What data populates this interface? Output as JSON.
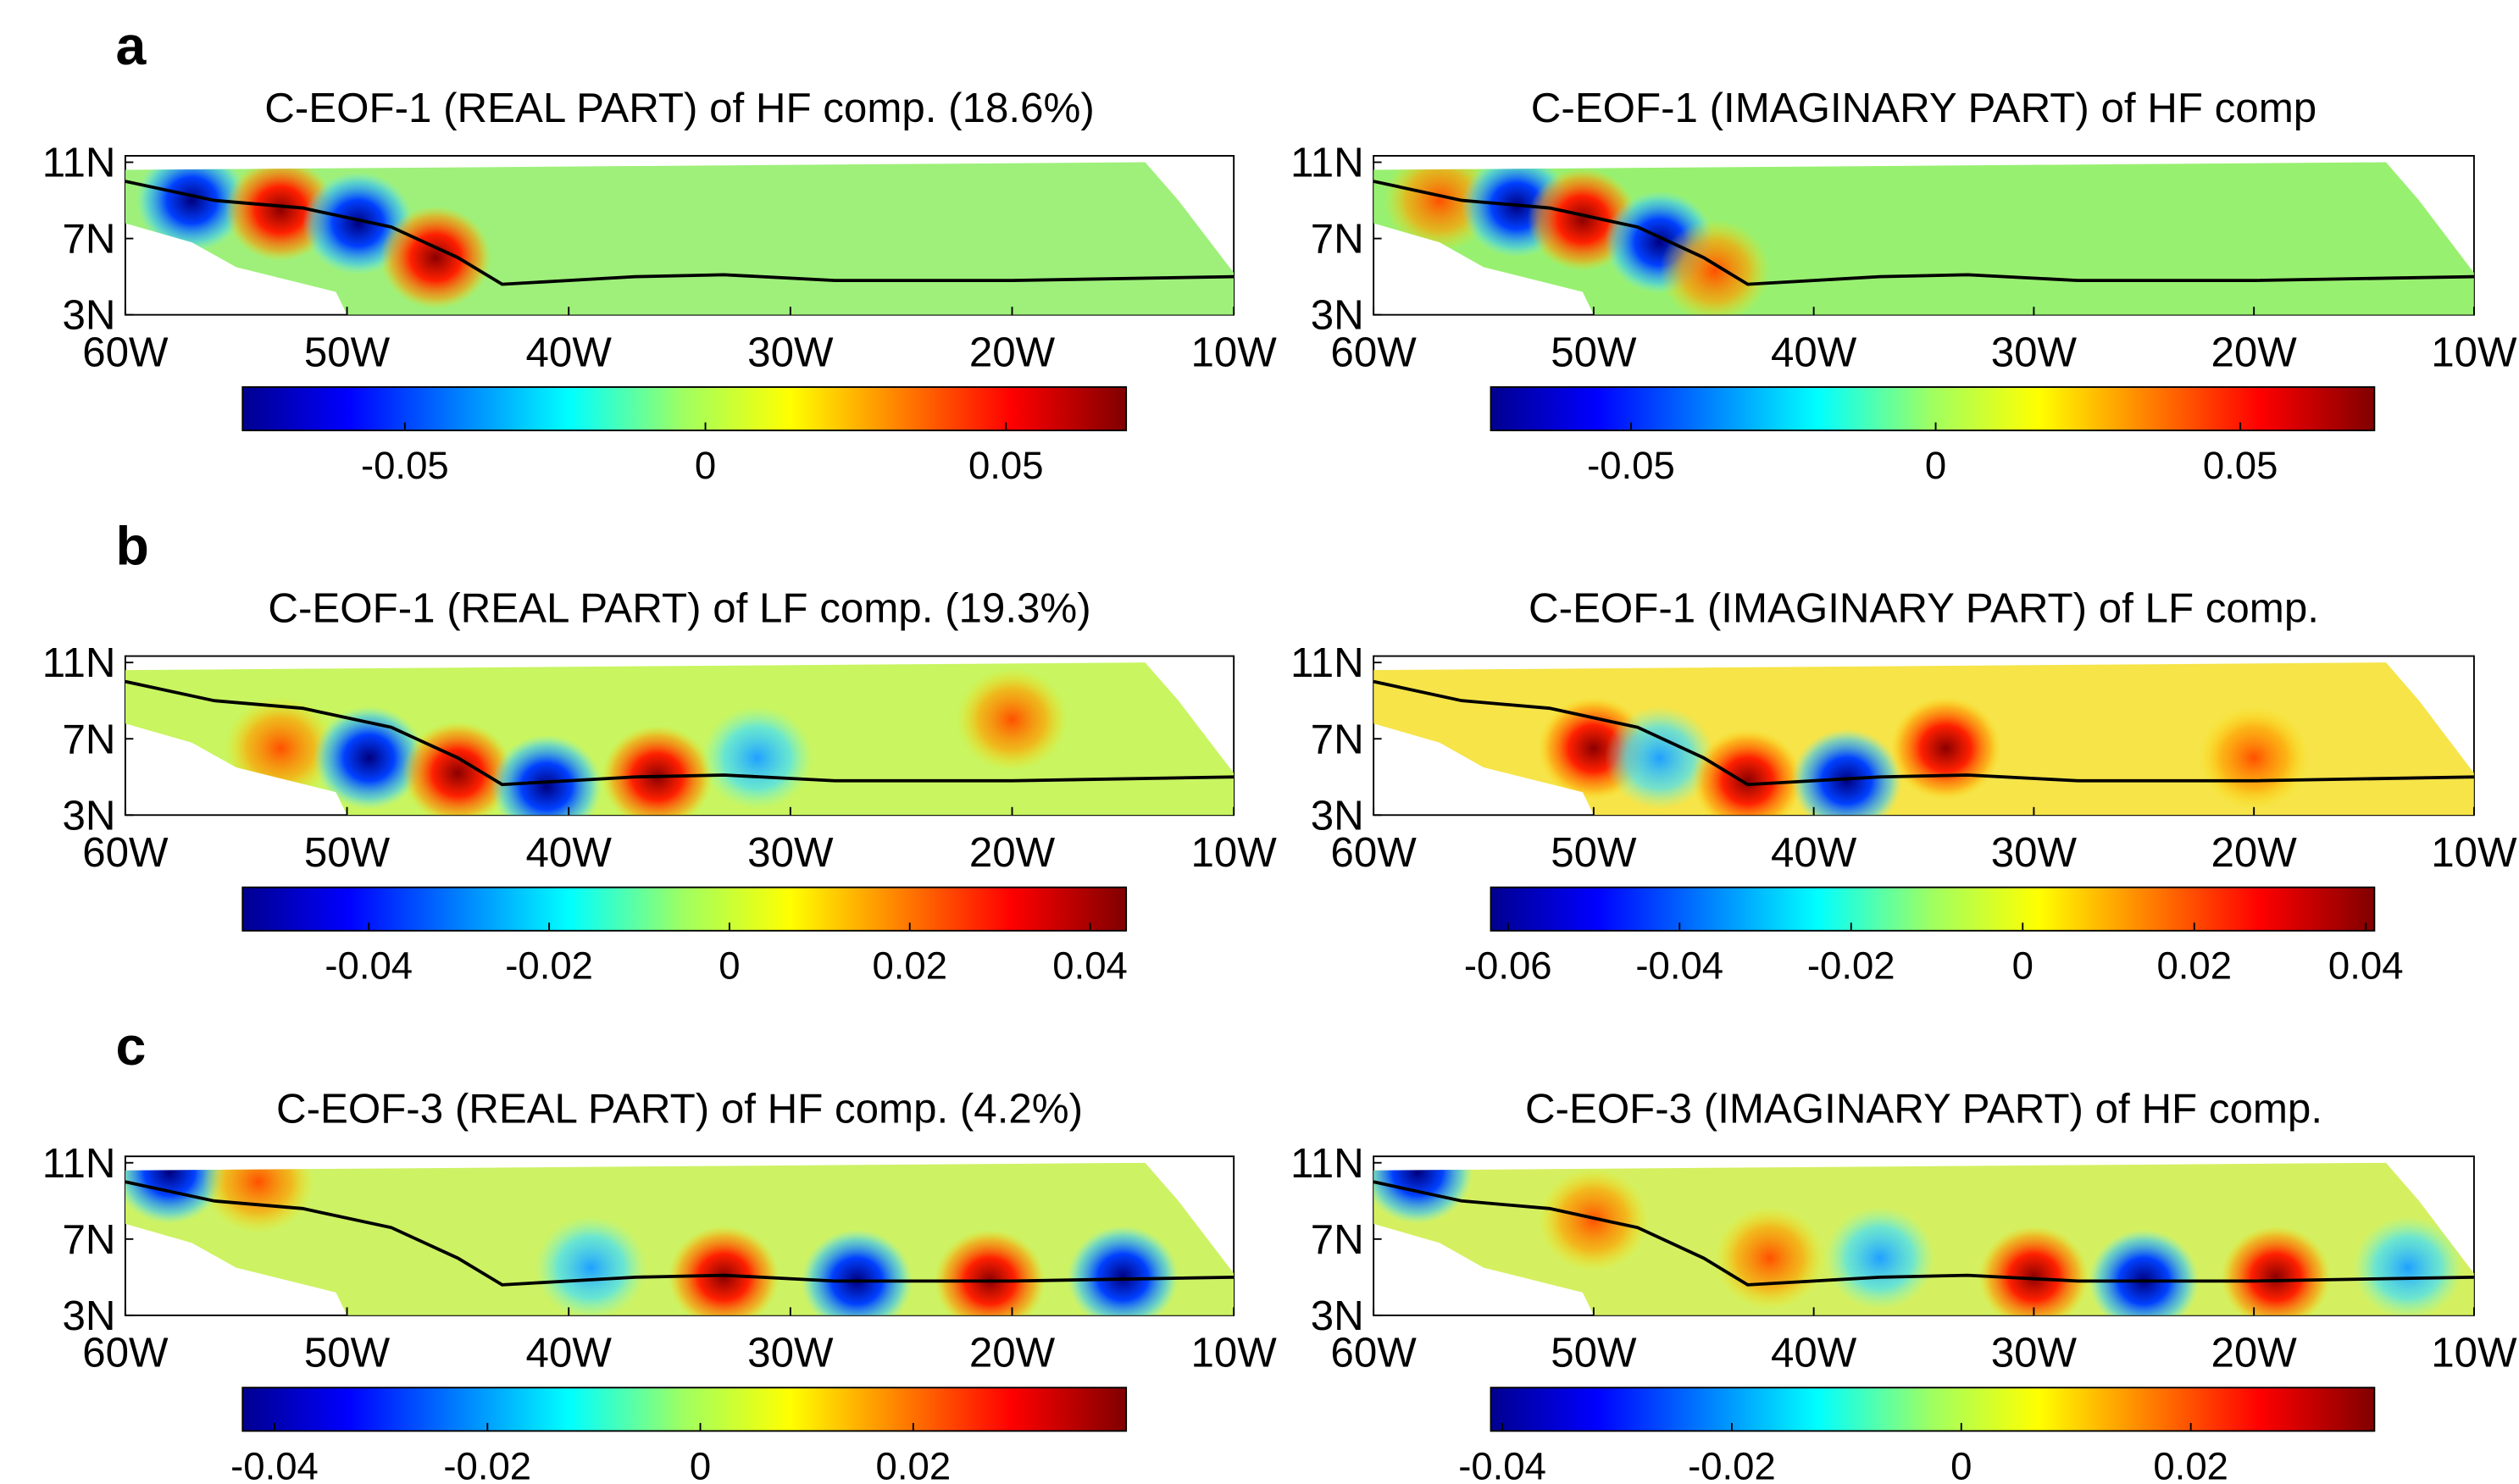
{
  "panels": [
    {
      "letter": "a",
      "title": "C-EOF-1 (REAL PART) of HF comp. (18.6%)",
      "xlim": [
        -60,
        -10
      ],
      "ylim": [
        3,
        11
      ],
      "xticks": [
        {
          "value": -60,
          "label": "60W"
        },
        {
          "value": -50,
          "label": "50W"
        },
        {
          "value": -40,
          "label": "40W"
        },
        {
          "value": -30,
          "label": "30W"
        },
        {
          "value": -20,
          "label": "20W"
        },
        {
          "value": -10,
          "label": "10W"
        }
      ],
      "yticks": [
        {
          "value": 3,
          "label": "3N"
        },
        {
          "value": 7,
          "label": "7N"
        },
        {
          "value": 11,
          "label": "11N"
        }
      ],
      "colorbar": {
        "clim": [
          -0.077,
          0.07
        ],
        "ticks": [
          -0.05,
          0,
          0.05
        ]
      }
    },
    {
      "title": "C-EOF-1 (IMAGINARY PART) of HF comp",
      "xlim": [
        -60,
        -10
      ],
      "ylim": [
        3,
        11
      ],
      "xticks": [
        {
          "value": -60,
          "label": "60W"
        },
        {
          "value": -50,
          "label": "50W"
        },
        {
          "value": -40,
          "label": "40W"
        },
        {
          "value": -30,
          "label": "30W"
        },
        {
          "value": -20,
          "label": "20W"
        },
        {
          "value": -10,
          "label": "10W"
        }
      ],
      "yticks": [
        {
          "value": 3,
          "label": "3N"
        },
        {
          "value": 7,
          "label": "7N"
        },
        {
          "value": 11,
          "label": "11N"
        }
      ],
      "colorbar": {
        "clim": [
          -0.073,
          0.072
        ],
        "ticks": [
          -0.05,
          0,
          0.05
        ]
      }
    },
    {
      "letter": "b",
      "title": "C-EOF-1 (REAL PART) of LF comp. (19.3%)",
      "xlim": [
        -60,
        -10
      ],
      "ylim": [
        3,
        11
      ],
      "xticks": [
        {
          "value": -60,
          "label": "60W"
        },
        {
          "value": -50,
          "label": "50W"
        },
        {
          "value": -40,
          "label": "40W"
        },
        {
          "value": -30,
          "label": "30W"
        },
        {
          "value": -20,
          "label": "20W"
        },
        {
          "value": -10,
          "label": "10W"
        }
      ],
      "yticks": [
        {
          "value": 3,
          "label": "3N"
        },
        {
          "value": 7,
          "label": "7N"
        },
        {
          "value": 11,
          "label": "11N"
        }
      ],
      "colorbar": {
        "clim": [
          -0.054,
          0.044
        ],
        "ticks": [
          -0.04,
          -0.02,
          0,
          0.02,
          0.04
        ]
      }
    },
    {
      "title": "C-EOF-1 (IMAGINARY PART) of LF comp.",
      "xlim": [
        -60,
        -10
      ],
      "ylim": [
        3,
        11
      ],
      "xticks": [
        {
          "value": -60,
          "label": "60W"
        },
        {
          "value": -50,
          "label": "50W"
        },
        {
          "value": -40,
          "label": "40W"
        },
        {
          "value": -30,
          "label": "30W"
        },
        {
          "value": -20,
          "label": "20W"
        },
        {
          "value": -10,
          "label": "10W"
        }
      ],
      "yticks": [
        {
          "value": 3,
          "label": "3N"
        },
        {
          "value": 7,
          "label": "7N"
        },
        {
          "value": 11,
          "label": "11N"
        }
      ],
      "colorbar": {
        "clim": [
          -0.062,
          0.041
        ],
        "ticks": [
          -0.06,
          -0.04,
          -0.02,
          0,
          0.02,
          0.04
        ]
      }
    },
    {
      "letter": "c",
      "title": "C-EOF-3 (REAL PART) of HF comp. (4.2%)",
      "xlim": [
        -60,
        -10
      ],
      "ylim": [
        3,
        11
      ],
      "xticks": [
        {
          "value": -60,
          "label": "60W"
        },
        {
          "value": -50,
          "label": "50W"
        },
        {
          "value": -40,
          "label": "40W"
        },
        {
          "value": -30,
          "label": "30W"
        },
        {
          "value": -20,
          "label": "20W"
        },
        {
          "value": -10,
          "label": "10W"
        }
      ],
      "yticks": [
        {
          "value": 3,
          "label": "3N"
        },
        {
          "value": 7,
          "label": "7N"
        },
        {
          "value": 11,
          "label": "11N"
        }
      ],
      "colorbar": {
        "clim": [
          -0.043,
          0.04
        ],
        "ticks": [
          -0.04,
          -0.02,
          0,
          0.02
        ]
      }
    },
    {
      "title": "C-EOF-3 (IMAGINARY PART) of HF comp.",
      "xlim": [
        -60,
        -10
      ],
      "ylim": [
        3,
        11
      ],
      "xticks": [
        {
          "value": -60,
          "label": "60W"
        },
        {
          "value": -50,
          "label": "50W"
        },
        {
          "value": -40,
          "label": "40W"
        },
        {
          "value": -30,
          "label": "30W"
        },
        {
          "value": -20,
          "label": "20W"
        },
        {
          "value": -10,
          "label": "10W"
        }
      ],
      "yticks": [
        {
          "value": 3,
          "label": "3N"
        },
        {
          "value": 7,
          "label": "7N"
        },
        {
          "value": 11,
          "label": "11N"
        }
      ],
      "colorbar": {
        "clim": [
          -0.041,
          0.036
        ],
        "ticks": [
          -0.04,
          -0.02,
          0,
          0.02
        ]
      }
    }
  ]
}
